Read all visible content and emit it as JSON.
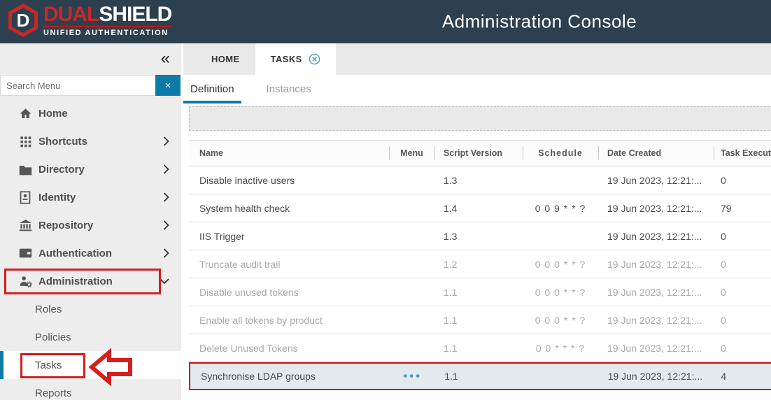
{
  "header": {
    "logo": {
      "word_red": "DUAL",
      "word_white": "SHIELD",
      "tagline": "UNIFIED AUTHENTICATION"
    },
    "title": "Administration Console"
  },
  "sidebar": {
    "collapse_icon": "«",
    "search": {
      "placeholder": "Search Menu",
      "clear_label": "×",
      "value": ""
    },
    "items": [
      {
        "label": "Home"
      },
      {
        "label": "Shortcuts"
      },
      {
        "label": "Directory"
      },
      {
        "label": "Identity"
      },
      {
        "label": "Repository"
      },
      {
        "label": "Authentication"
      },
      {
        "label": "Administration"
      },
      {
        "label": "Roles"
      },
      {
        "label": "Policies"
      },
      {
        "label": "Tasks"
      },
      {
        "label": "Reports"
      }
    ]
  },
  "main": {
    "tabs": [
      {
        "label": "HOME"
      },
      {
        "label": "TASKS",
        "active": true,
        "closable": true
      }
    ],
    "subtabs": [
      {
        "label": "Definition",
        "active": true
      },
      {
        "label": "Instances"
      }
    ],
    "table": {
      "columns": [
        "Name",
        "Menu",
        "Script Version",
        "Schedule",
        "Date Created",
        "Task Execut"
      ],
      "rows": [
        {
          "name": "Disable inactive users",
          "menu": "",
          "script_version": "1.3",
          "schedule": "",
          "date_created": "19 Jun 2023, 12:21:...",
          "task_executions": "0",
          "muted": false,
          "highlighted": false
        },
        {
          "name": "System health check",
          "menu": "",
          "script_version": "1.4",
          "schedule": "0 0 9 * * ?",
          "date_created": "19 Jun 2023, 12:21:...",
          "task_executions": "79",
          "muted": false,
          "highlighted": false
        },
        {
          "name": "IIS Trigger",
          "menu": "",
          "script_version": "1.3",
          "schedule": "",
          "date_created": "19 Jun 2023, 12:21:...",
          "task_executions": "0",
          "muted": false,
          "highlighted": false
        },
        {
          "name": "Truncate audit trail",
          "menu": "",
          "script_version": "1.2",
          "schedule": "0 0 0 * * ?",
          "date_created": "19 Jun 2023, 12:21:...",
          "task_executions": "0",
          "muted": true,
          "highlighted": false
        },
        {
          "name": "Disable unused tokens",
          "menu": "",
          "script_version": "1.1",
          "schedule": "0 0 0 * * ?",
          "date_created": "19 Jun 2023, 12:21:...",
          "task_executions": "0",
          "muted": true,
          "highlighted": false
        },
        {
          "name": "Enable all tokens by product",
          "menu": "",
          "script_version": "1.1",
          "schedule": "0 0 0 * * ?",
          "date_created": "19 Jun 2023, 12:21:...",
          "task_executions": "0",
          "muted": true,
          "highlighted": false
        },
        {
          "name": "Delete Unused Tokens",
          "menu": "",
          "script_version": "1.1",
          "schedule": "0 0 * * * ?",
          "date_created": "19 Jun 2023, 12:21:...",
          "task_executions": "0",
          "muted": true,
          "highlighted": false
        },
        {
          "name": "Synchronise LDAP groups",
          "menu": "•••",
          "script_version": "1.1",
          "schedule": "",
          "date_created": "19 Jun 2023, 12:21:...",
          "task_executions": "4",
          "muted": false,
          "highlighted": true
        }
      ]
    }
  },
  "colors": {
    "header_bg": "#2d4050",
    "accent_blue": "#0d7aa8",
    "annotation_red": "#d71e1e",
    "logo_red": "#c62828",
    "highlight_row_bg": "#e3eaee"
  }
}
